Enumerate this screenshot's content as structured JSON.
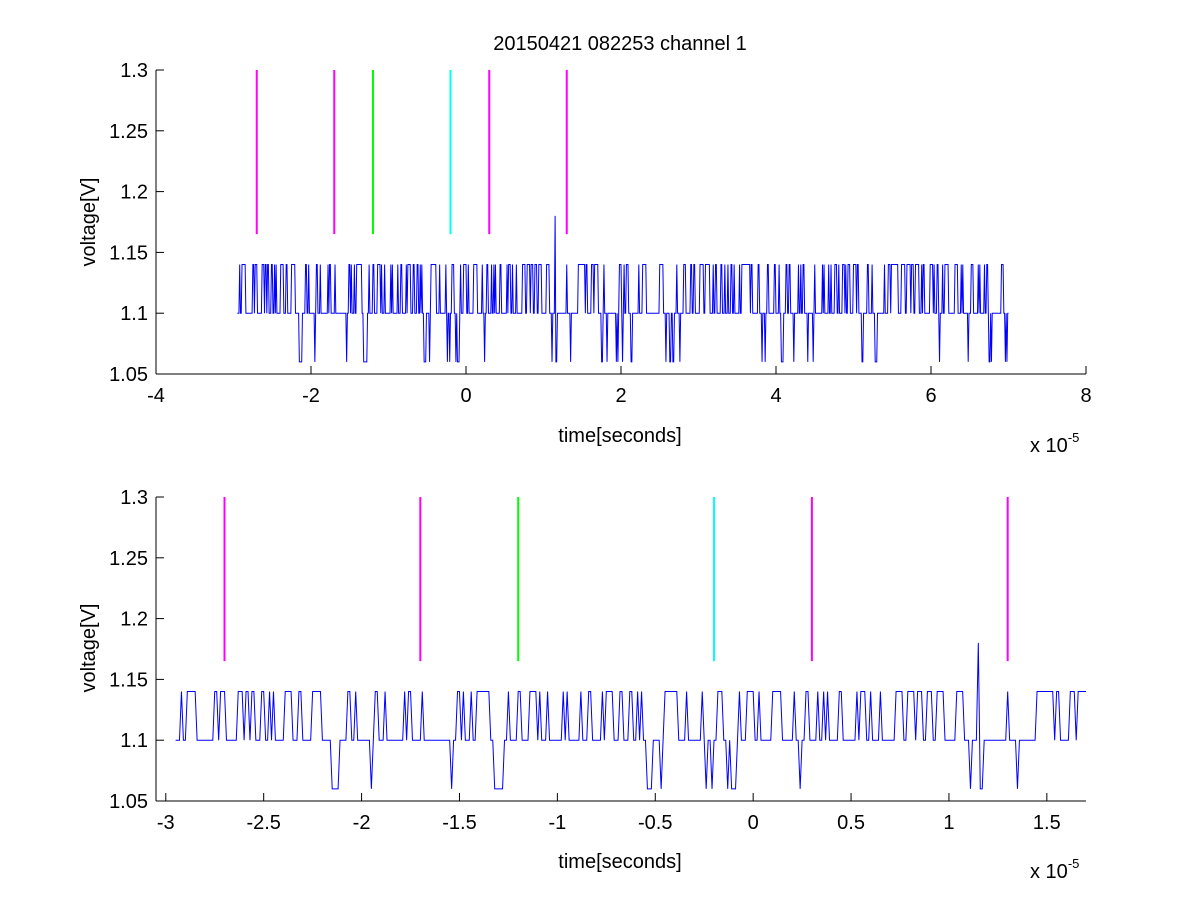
{
  "chart_data": [
    {
      "type": "line",
      "title": "20150421 082253 channel 1",
      "xlabel": "time[seconds]",
      "ylabel": "voltage[V]",
      "x_exponent_label": "x 10",
      "x_exponent_power": "-5",
      "xlim": [
        -4,
        8
      ],
      "ylim": [
        1.05,
        1.3
      ],
      "xticks": [
        -4,
        -2,
        0,
        2,
        4,
        6,
        8
      ],
      "xtick_labels": [
        "-4",
        "-2",
        "0",
        "2",
        "4",
        "6",
        "8"
      ],
      "yticks": [
        1.05,
        1.1,
        1.15,
        1.2,
        1.25,
        1.3
      ],
      "ytick_labels": [
        "1.05",
        "1.1",
        "1.15",
        "1.2",
        "1.25",
        "1.3"
      ],
      "grid": false,
      "signal": {
        "color": "#0000ff",
        "x_range": [
          -2.95,
          7.0
        ],
        "levels": [
          1.06,
          1.1,
          1.14
        ],
        "spike": {
          "x": 1.15,
          "y": 1.18
        }
      },
      "markers": [
        {
          "x": -2.7,
          "y_range": [
            1.165,
            1.3
          ],
          "color": "#ff00ff"
        },
        {
          "x": -1.7,
          "y_range": [
            1.165,
            1.3
          ],
          "color": "#ff00ff"
        },
        {
          "x": -1.2,
          "y_range": [
            1.165,
            1.3
          ],
          "color": "#00ff00"
        },
        {
          "x": -0.2,
          "y_range": [
            1.165,
            1.3
          ],
          "color": "#00ffff"
        },
        {
          "x": 0.3,
          "y_range": [
            1.165,
            1.3
          ],
          "color": "#ff00ff"
        },
        {
          "x": 1.3,
          "y_range": [
            1.165,
            1.3
          ],
          "color": "#ff00ff"
        }
      ]
    },
    {
      "type": "line",
      "title": "",
      "xlabel": "time[seconds]",
      "ylabel": "voltage[V]",
      "x_exponent_label": "x 10",
      "x_exponent_power": "-5",
      "xlim": [
        -3.05,
        1.7
      ],
      "ylim": [
        1.05,
        1.3
      ],
      "xticks": [
        -3,
        -2.5,
        -2,
        -1.5,
        -1,
        -0.5,
        0,
        0.5,
        1,
        1.5
      ],
      "xtick_labels": [
        "-3",
        "-2.5",
        "-2",
        "-1.5",
        "-1",
        "-0.5",
        "0",
        "0.5",
        "1",
        "1.5"
      ],
      "yticks": [
        1.05,
        1.1,
        1.15,
        1.2,
        1.25,
        1.3
      ],
      "ytick_labels": [
        "1.05",
        "1.1",
        "1.15",
        "1.2",
        "1.25",
        "1.3"
      ],
      "grid": false,
      "signal": {
        "color": "#0000ff",
        "x_range": [
          -2.95,
          1.7
        ],
        "levels": [
          1.06,
          1.1,
          1.14
        ],
        "spike": {
          "x": 1.15,
          "y": 1.18
        }
      },
      "markers": [
        {
          "x": -2.7,
          "y_range": [
            1.165,
            1.3
          ],
          "color": "#ff00ff"
        },
        {
          "x": -1.7,
          "y_range": [
            1.165,
            1.3
          ],
          "color": "#ff00ff"
        },
        {
          "x": -1.2,
          "y_range": [
            1.165,
            1.3
          ],
          "color": "#00ff00"
        },
        {
          "x": -0.2,
          "y_range": [
            1.165,
            1.3
          ],
          "color": "#00ffff"
        },
        {
          "x": 0.3,
          "y_range": [
            1.165,
            1.3
          ],
          "color": "#ff00ff"
        },
        {
          "x": 1.3,
          "y_range": [
            1.165,
            1.3
          ],
          "color": "#ff00ff"
        }
      ]
    }
  ]
}
